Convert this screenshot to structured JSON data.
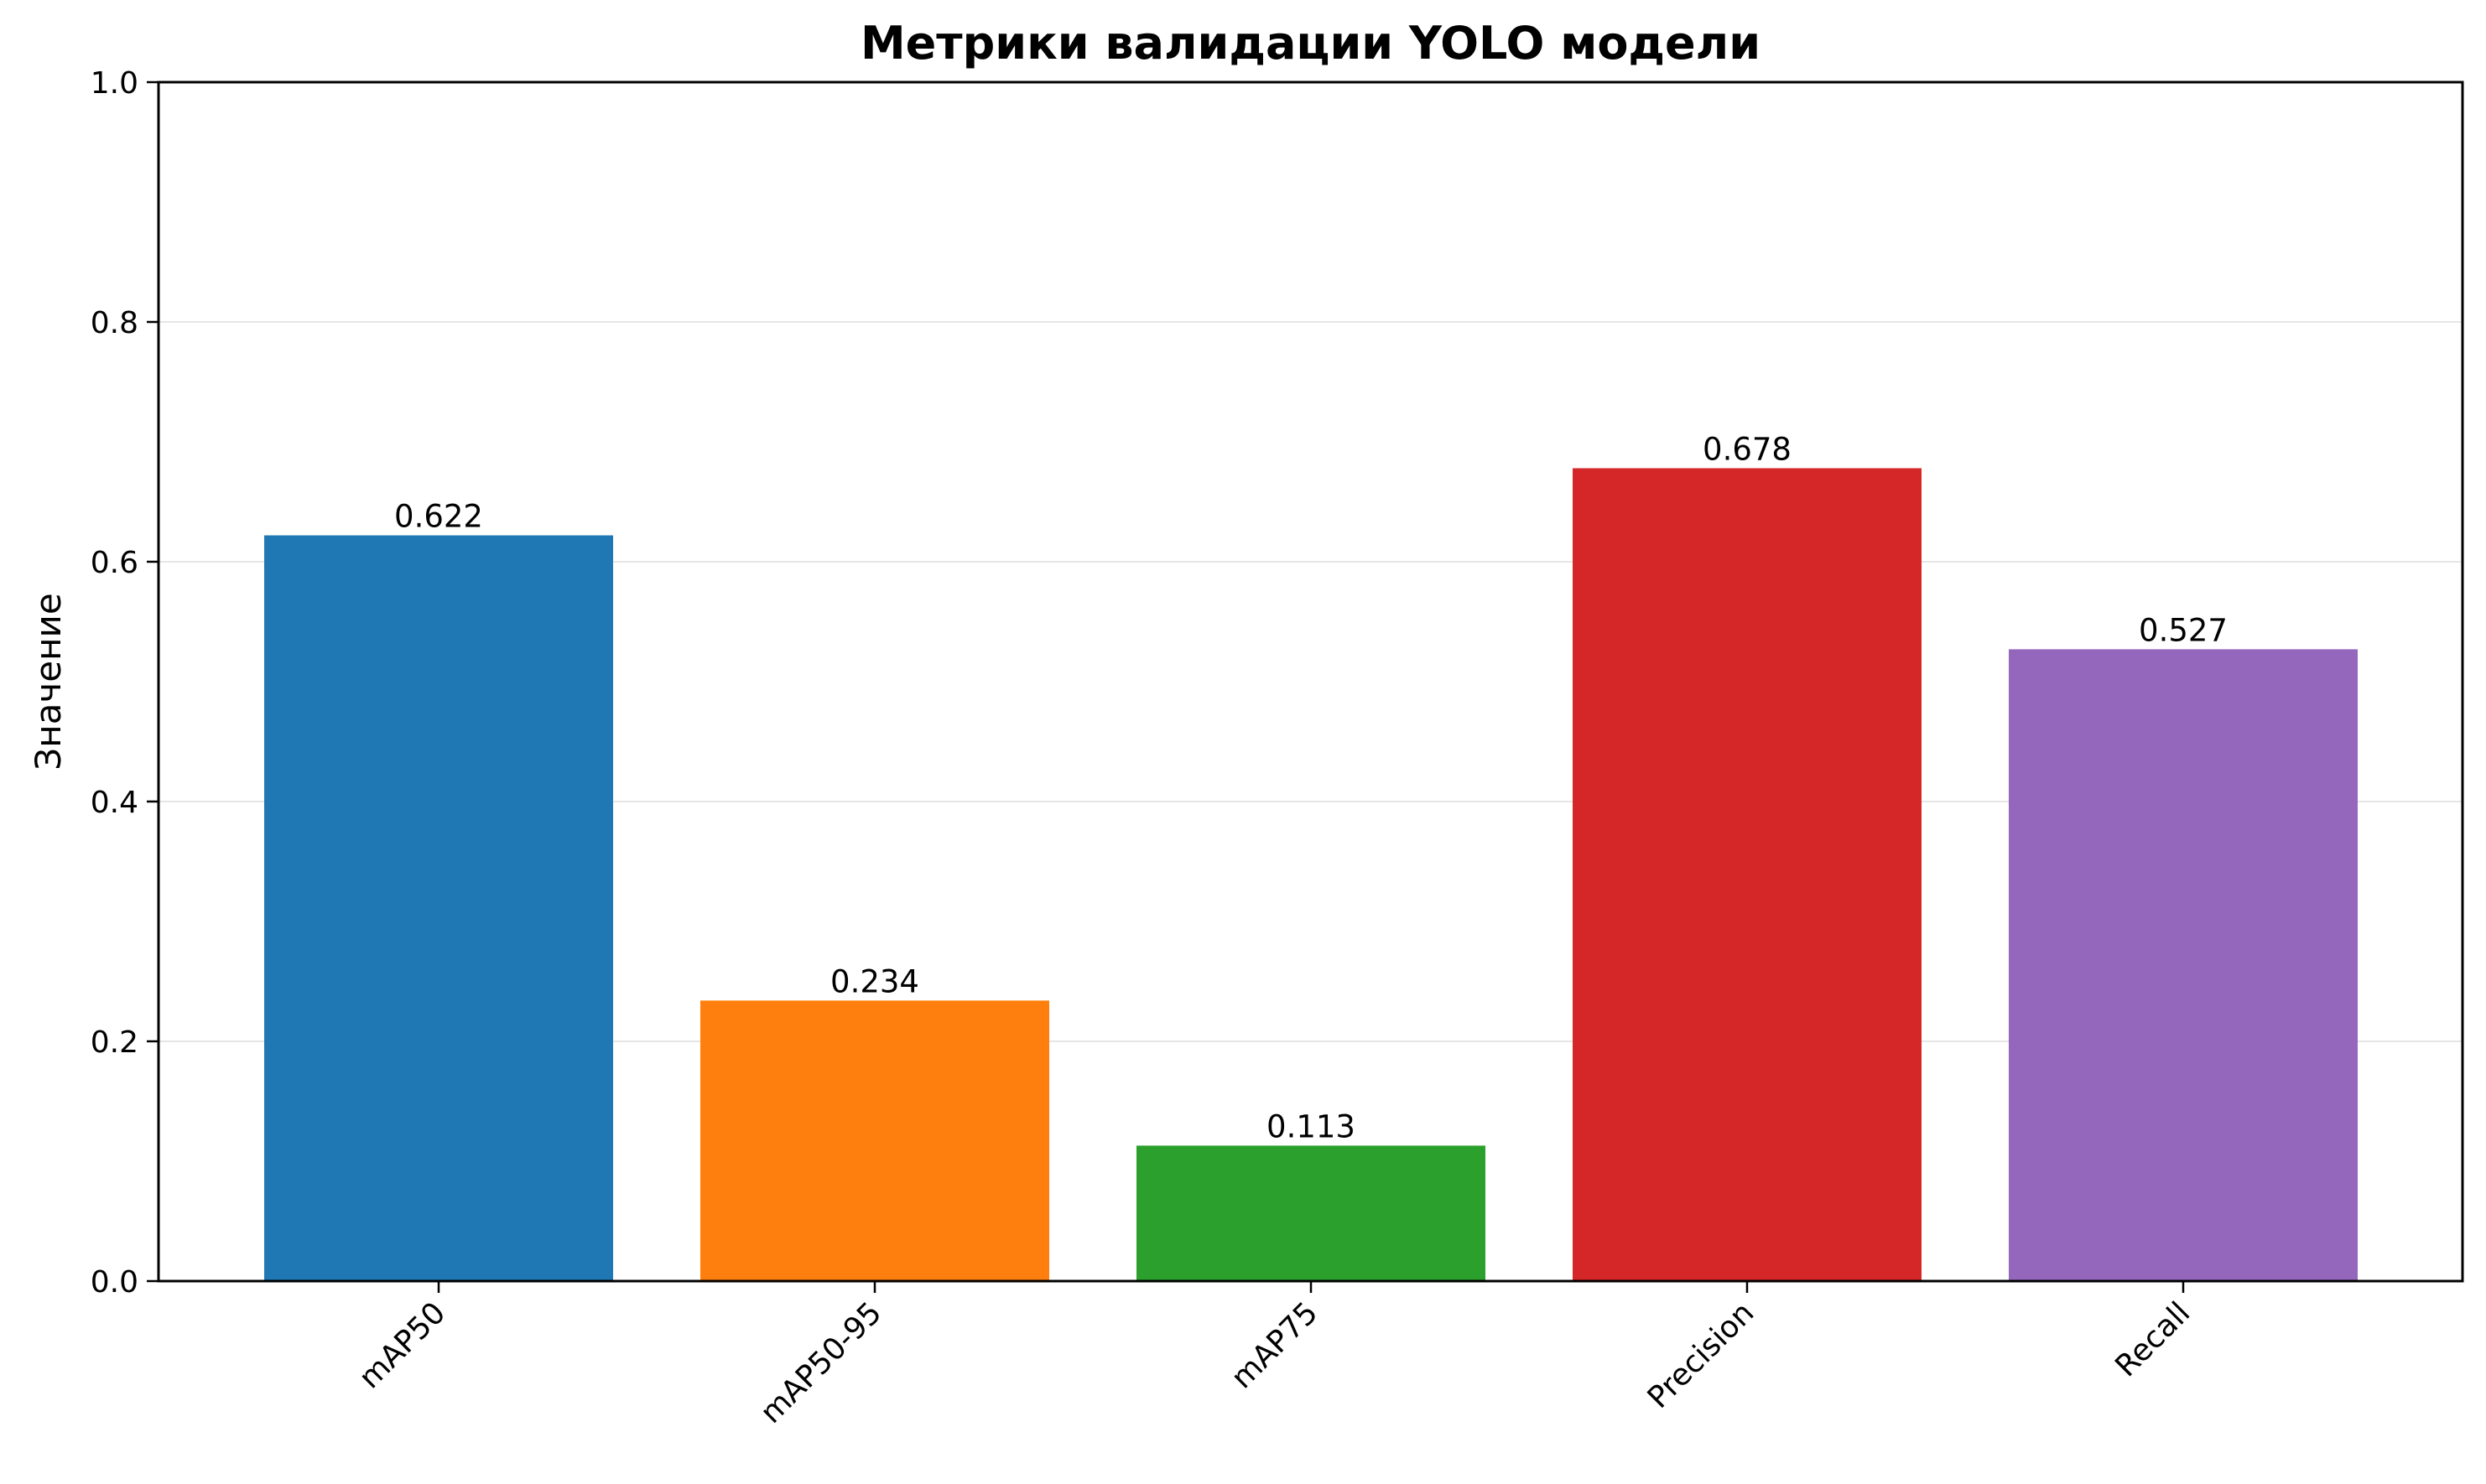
{
  "chart_data": {
    "type": "bar",
    "title": "Метрики валидации YOLO модели",
    "xlabel": "",
    "ylabel": "Значение",
    "categories": [
      "mAP50",
      "mAP50-95",
      "mAP75",
      "Precision",
      "Recall"
    ],
    "values": [
      0.622,
      0.234,
      0.113,
      0.678,
      0.527
    ],
    "value_labels": [
      "0.622",
      "0.234",
      "0.113",
      "0.678",
      "0.527"
    ],
    "colors": [
      "#1f77b4",
      "#ff7f0e",
      "#2ca02c",
      "#d62728",
      "#9467bd"
    ],
    "ylim": [
      0,
      1.0
    ],
    "yticks": [
      0.0,
      0.2,
      0.4,
      0.6,
      0.8,
      1.0
    ],
    "ytick_labels": [
      "0.0",
      "0.2",
      "0.4",
      "0.6",
      "0.8",
      "1.0"
    ],
    "grid": "y",
    "legend": "none",
    "xtick_rotation": -45
  }
}
